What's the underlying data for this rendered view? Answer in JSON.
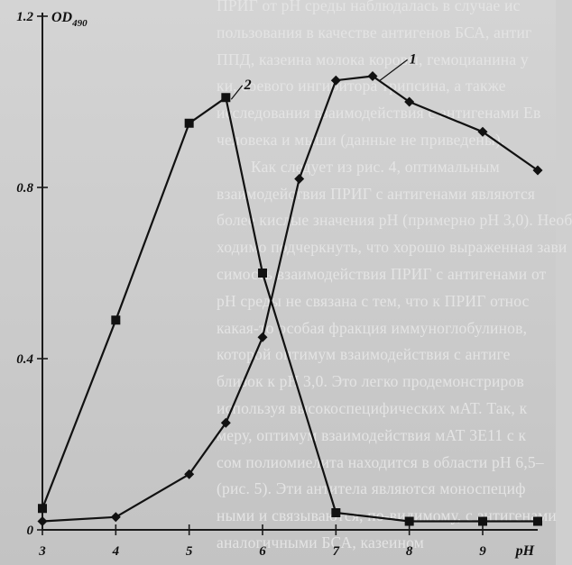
{
  "background_text": [
    "ПРИГ от pH среды наблюдалась в случае ис",
    "пользования в качестве антигенов БСА, антиг",
    "ППД, казеина молока коровы, гемоцианина у",
    "ки, соевого ингибитора трипсина, а также",
    "исследования взаимодействия с антигенами Ев",
    "человека и мыши (данные не приведены).",
    "Как следует из рис. 4, оптимальным",
    "взаимодействия ПРИГ с антигенами являются",
    "более кислые значения pH (примерно pH 3,0). Необ",
    "ходимо подчеркнуть, что хорошо выраженная зави",
    "симость взаимодействия ПРИГ с антигенами от",
    "pH среды не связана с тем, что к ПРИГ относ",
    "какая-то особая фракция иммуноглобулинов,",
    "которой оптимум взаимодействия с антиге",
    "близок к pH 3,0. Это легко продемонстриров",
    "используя высокоспецифических мАТ. Так, к",
    "меру, оптимум взаимодействия мАТ 3Е11 с к",
    "сом полиомиелита находится в области pH 6,5–",
    "(рис. 5). Эти антитела являются моноспециф",
    "ными и связываются, по-видимому, с антигенами",
    "аналогичными БСА, казеином"
  ],
  "chart_data": {
    "type": "line",
    "ylabel": "OD",
    "ylabel_subscript": "490",
    "xlabel": "pH",
    "xlim": [
      3,
      9.75
    ],
    "ylim": [
      0,
      1.2
    ],
    "x_ticks": [
      {
        "value": 3,
        "label": "3"
      },
      {
        "value": 4,
        "label": "4"
      },
      {
        "value": 5,
        "label": "5"
      },
      {
        "value": 6,
        "label": "6"
      },
      {
        "value": 7,
        "label": "7"
      },
      {
        "value": 8,
        "label": "8"
      },
      {
        "value": 9,
        "label": "9"
      }
    ],
    "y_ticks": [
      {
        "value": 0,
        "label": "0"
      },
      {
        "value": 0.4,
        "label": "0.4"
      },
      {
        "value": 0.8,
        "label": "0.8"
      },
      {
        "value": 1.2,
        "label": "1.2"
      }
    ],
    "grid": false,
    "series": [
      {
        "name": "1",
        "marker": "diamond",
        "color": "#111111",
        "x": [
          3,
          4,
          5,
          5.5,
          6,
          6.5,
          7,
          7.5,
          8,
          9,
          9.75
        ],
        "y": [
          0.02,
          0.03,
          0.13,
          0.25,
          0.45,
          0.82,
          1.05,
          1.06,
          1.0,
          0.93,
          0.84
        ]
      },
      {
        "name": "2",
        "marker": "square",
        "color": "#111111",
        "x": [
          3,
          4,
          5,
          5.5,
          6,
          7,
          8,
          9,
          9.75
        ],
        "y": [
          0.05,
          0.49,
          0.95,
          1.01,
          0.6,
          0.04,
          0.02,
          0.02,
          0.02
        ]
      }
    ]
  }
}
